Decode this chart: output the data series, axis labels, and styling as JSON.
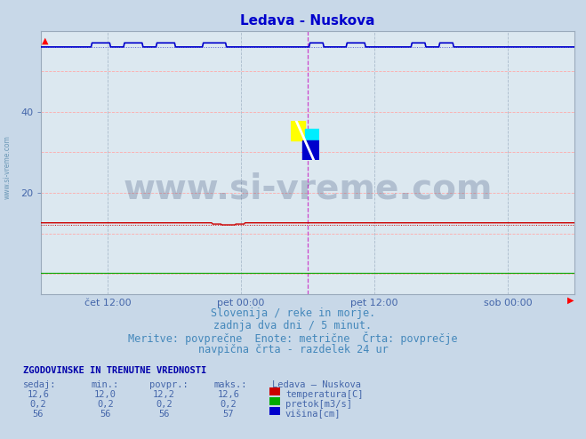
{
  "title": "Ledava - Nuskova",
  "title_color": "#0000cc",
  "bg_color": "#c8d8e8",
  "plot_bg_color": "#dce8f0",
  "ylim": [
    -5,
    60
  ],
  "yticks": [
    20,
    40
  ],
  "xlabel_color": "#4466aa",
  "xtick_labels": [
    "čet 12:00",
    "pet 00:00",
    "pet 12:00",
    "sob 00:00"
  ],
  "xtick_positions": [
    0.125,
    0.375,
    0.625,
    0.875
  ],
  "n_points": 576,
  "temp_color": "#cc0000",
  "flow_color": "#00aa00",
  "height_color": "#0000cc",
  "vline_magenta": "#cc44cc",
  "grid_h_color": "#ffaaaa",
  "grid_v_color": "#aabbcc",
  "watermark_text": "www.si-vreme.com",
  "watermark_color": "#1a3060",
  "watermark_alpha": 0.22,
  "watermark_fontsize": 28,
  "footer_color": "#4488bb",
  "footer_fontsize": 8.5,
  "footer_lines": [
    "Slovenija / reke in morje.",
    "zadnja dva dni / 5 minut.",
    "Meritve: povrpčne  Enote: metrične  Črta: povrpčje",
    "navpična črta - razdelek 24 ur"
  ],
  "table_header": "ZGODOVINSKE IN TRENUTNE VREDNOSTI",
  "table_header_color": "#0000aa",
  "col_headers": [
    "sedaj:",
    "min.:",
    "povpr.:",
    "maks.:",
    "Ledava – Nuskova"
  ],
  "rows": [
    {
      "values": [
        "12,6",
        "12,0",
        "12,2",
        "12,6"
      ],
      "label": "temperatura[C]",
      "color": "#cc0000"
    },
    {
      "values": [
        "0,2",
        "0,2",
        "0,2",
        "0,2"
      ],
      "label": "pretok[m3/s]",
      "color": "#00aa00"
    },
    {
      "values": [
        "56",
        "56",
        "56",
        "57"
      ],
      "label": "višina[cm]",
      "color": "#0000cc"
    }
  ],
  "sidebar_text": "www.si-vreme.com",
  "sidebar_color": "#5588aa"
}
